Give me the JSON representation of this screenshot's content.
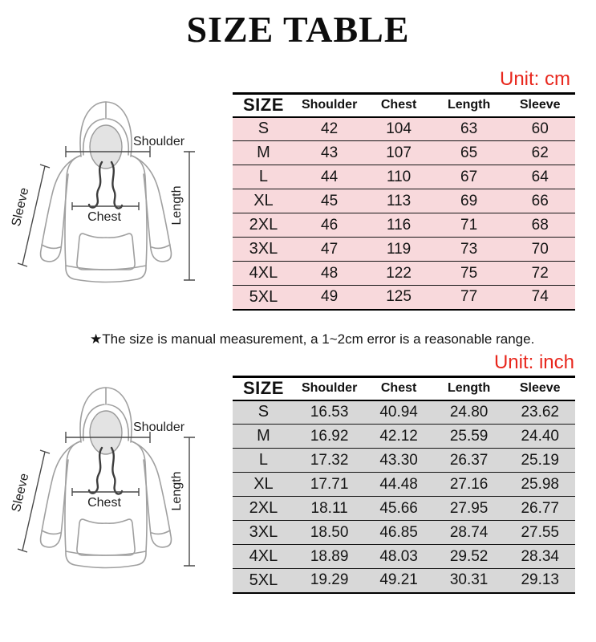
{
  "title": "SIZE TABLE",
  "note": "★The size is manual measurement, a 1~2cm error is a reasonable range.",
  "diagram_labels": {
    "shoulder": "Shoulder",
    "sleeve": "Sleeve",
    "chest": "Chest",
    "length": "Length"
  },
  "colors": {
    "unit_label_red": "#e8271d",
    "cm_row_pink": "#f8d9dc",
    "inch_row_gray": "#d8d8d8",
    "border_black": "#000000"
  },
  "tables": [
    {
      "id": "cm",
      "unit_label": "Unit: cm",
      "columns": [
        "SIZE",
        "Shoulder",
        "Chest",
        "Length",
        "Sleeve"
      ],
      "rows": [
        [
          "S",
          "42",
          "104",
          "63",
          "60"
        ],
        [
          "M",
          "43",
          "107",
          "65",
          "62"
        ],
        [
          "L",
          "44",
          "110",
          "67",
          "64"
        ],
        [
          "XL",
          "45",
          "113",
          "69",
          "66"
        ],
        [
          "2XL",
          "46",
          "116",
          "71",
          "68"
        ],
        [
          "3XL",
          "47",
          "119",
          "73",
          "70"
        ],
        [
          "4XL",
          "48",
          "122",
          "75",
          "72"
        ],
        [
          "5XL",
          "49",
          "125",
          "77",
          "74"
        ]
      ]
    },
    {
      "id": "inch",
      "unit_label": "Unit: inch",
      "columns": [
        "SIZE",
        "Shoulder",
        "Chest",
        "Length",
        "Sleeve"
      ],
      "rows": [
        [
          "S",
          "16.53",
          "40.94",
          "24.80",
          "23.62"
        ],
        [
          "M",
          "16.92",
          "42.12",
          "25.59",
          "24.40"
        ],
        [
          "L",
          "17.32",
          "43.30",
          "26.37",
          "25.19"
        ],
        [
          "XL",
          "17.71",
          "44.48",
          "27.16",
          "25.98"
        ],
        [
          "2XL",
          "18.11",
          "45.66",
          "27.95",
          "26.77"
        ],
        [
          "3XL",
          "18.50",
          "46.85",
          "28.74",
          "27.55"
        ],
        [
          "4XL",
          "18.89",
          "48.03",
          "29.52",
          "28.34"
        ],
        [
          "5XL",
          "19.29",
          "49.21",
          "30.31",
          "29.13"
        ]
      ]
    }
  ]
}
